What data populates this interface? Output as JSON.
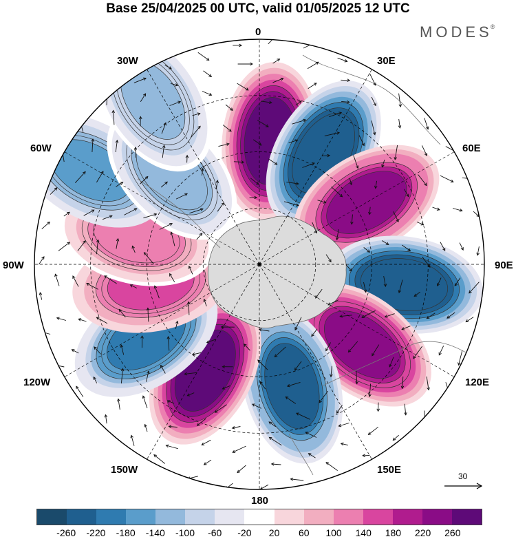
{
  "header": {
    "title": "Base 25/04/2025 00 UTC, valid 01/05/2025 12 UTC",
    "brand": "MODES",
    "brand_mark": "®"
  },
  "map": {
    "projection": "south polar stereographic",
    "longitude_labels": {
      "lon_0": "0",
      "lon_30e": "30E",
      "lon_60e": "60E",
      "lon_90e": "90E",
      "lon_120e": "120E",
      "lon_150e": "150E",
      "lon_180": "180",
      "lon_150w": "150W",
      "lon_120w": "120W",
      "lon_90w": "90W",
      "lon_60w": "60W",
      "lon_30w": "30W"
    },
    "reference_vector": {
      "value": "30"
    },
    "colors": {
      "land": "#dcdcdc",
      "grid": "#000000"
    },
    "anomaly_centers": [
      {
        "sign": "positive",
        "bearing_deg": 5,
        "distance_frac": 0.55,
        "strength": 260
      },
      {
        "sign": "negative",
        "bearing_deg": 30,
        "distance_frac": 0.57,
        "strength": -260
      },
      {
        "sign": "positive",
        "bearing_deg": 60,
        "distance_frac": 0.55,
        "strength": 240
      },
      {
        "sign": "negative",
        "bearing_deg": 98,
        "distance_frac": 0.65,
        "strength": -260
      },
      {
        "sign": "positive",
        "bearing_deg": 128,
        "distance_frac": 0.58,
        "strength": 250
      },
      {
        "sign": "negative",
        "bearing_deg": 165,
        "distance_frac": 0.56,
        "strength": -240
      },
      {
        "sign": "positive",
        "bearing_deg": 207,
        "distance_frac": 0.53,
        "strength": 260
      },
      {
        "sign": "negative",
        "bearing_deg": 237,
        "distance_frac": 0.6,
        "strength": -200
      },
      {
        "sign": "positive",
        "bearing_deg": 260,
        "distance_frac": 0.49,
        "strength": 160
      },
      {
        "sign": "positive",
        "bearing_deg": 283,
        "distance_frac": 0.56,
        "strength": 120
      },
      {
        "sign": "negative",
        "bearing_deg": 299,
        "distance_frac": 0.86,
        "strength": -150
      },
      {
        "sign": "negative",
        "bearing_deg": 316,
        "distance_frac": 0.56,
        "strength": -120
      },
      {
        "sign": "negative",
        "bearing_deg": 327,
        "distance_frac": 0.87,
        "strength": -110
      }
    ]
  },
  "colorbar": {
    "ticks": [
      "-260",
      "-220",
      "-180",
      "-140",
      "-100",
      "-60",
      "-20",
      "20",
      "60",
      "100",
      "140",
      "180",
      "220",
      "260"
    ],
    "colors": [
      "#1a4a6b",
      "#1f5f8f",
      "#2f7bb0",
      "#5a9dcb",
      "#93b9dc",
      "#c5d3e9",
      "#e6e6f1",
      "#ffffff",
      "#f8d6dc",
      "#f2aec0",
      "#ec7fb0",
      "#d9459f",
      "#b01c8e",
      "#8a0c86",
      "#5e0a78"
    ]
  }
}
